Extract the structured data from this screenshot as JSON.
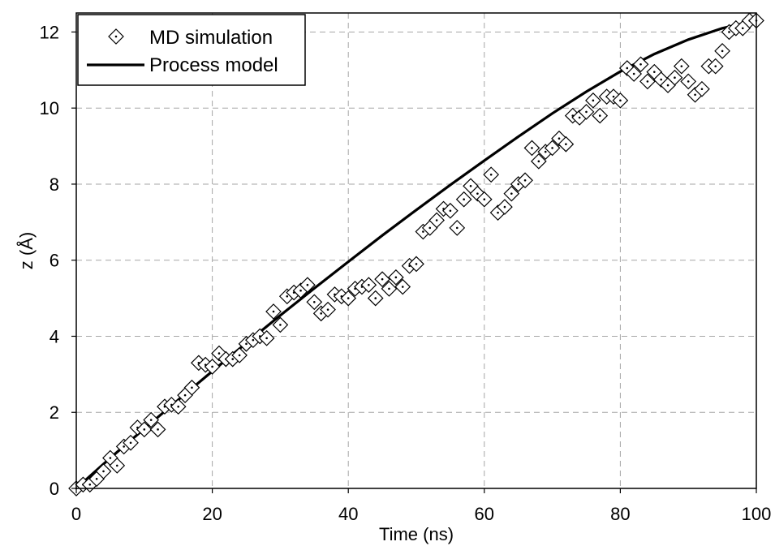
{
  "chart_data": {
    "type": "scatter",
    "xlabel": "Time (ns)",
    "ylabel": "z (Å)",
    "xlim": [
      0,
      100
    ],
    "ylim": [
      0,
      12.5
    ],
    "x_ticks": [
      "0",
      "20",
      "40",
      "60",
      "80",
      "100"
    ],
    "y_ticks": [
      "0",
      "2",
      "4",
      "6",
      "8",
      "10",
      "12"
    ],
    "grid": true,
    "legend_position": "top-left",
    "series": [
      {
        "name": "MD simulation",
        "type": "scatter",
        "marker": "diamond",
        "x": [
          0,
          1,
          2,
          3,
          4,
          5,
          6,
          7,
          8,
          9,
          10,
          11,
          12,
          13,
          14,
          15,
          16,
          17,
          18,
          19,
          20,
          21,
          22,
          23,
          24,
          25,
          26,
          27,
          28,
          29,
          30,
          31,
          32,
          33,
          34,
          35,
          36,
          37,
          38,
          39,
          40,
          41,
          42,
          43,
          44,
          45,
          46,
          47,
          48,
          49,
          50,
          51,
          52,
          53,
          54,
          55,
          56,
          57,
          58,
          59,
          60,
          61,
          62,
          63,
          64,
          65,
          66,
          67,
          68,
          69,
          70,
          71,
          72,
          73,
          74,
          75,
          76,
          77,
          78,
          79,
          80,
          81,
          82,
          83,
          84,
          85,
          86,
          87,
          88,
          89,
          90,
          91,
          92,
          93,
          94,
          95,
          96,
          97,
          98,
          99,
          100
        ],
        "y": [
          0.0,
          0.1,
          0.1,
          0.25,
          0.45,
          0.8,
          0.6,
          1.1,
          1.2,
          1.6,
          1.55,
          1.8,
          1.55,
          2.15,
          2.2,
          2.15,
          2.45,
          2.65,
          3.3,
          3.25,
          3.2,
          3.55,
          3.4,
          3.4,
          3.5,
          3.8,
          3.9,
          4.0,
          3.95,
          4.65,
          4.3,
          5.05,
          5.15,
          5.2,
          5.35,
          4.9,
          4.6,
          4.7,
          5.1,
          5.05,
          5.0,
          5.25,
          5.3,
          5.35,
          5.0,
          5.5,
          5.25,
          5.55,
          5.3,
          5.85,
          5.9,
          6.75,
          6.85,
          7.05,
          7.35,
          7.3,
          6.85,
          7.6,
          7.95,
          7.75,
          7.6,
          8.25,
          7.25,
          7.4,
          7.75,
          8.0,
          8.1,
          8.95,
          8.6,
          8.85,
          8.95,
          9.2,
          9.05,
          9.8,
          9.75,
          9.9,
          10.2,
          9.8,
          10.3,
          10.3,
          10.2,
          11.05,
          10.9,
          11.15,
          10.7,
          10.95,
          10.75,
          10.6,
          10.8,
          11.1,
          10.7,
          10.35,
          10.5,
          11.1,
          11.1,
          11.5,
          12.0,
          12.1,
          12.1,
          12.3,
          12.3
        ]
      },
      {
        "name": "Process model",
        "type": "line",
        "x": [
          0,
          5,
          10,
          15,
          20,
          25,
          30,
          35,
          40,
          45,
          50,
          55,
          60,
          65,
          70,
          75,
          80,
          85,
          90,
          95,
          100
        ],
        "y": [
          0.0,
          0.8,
          1.57,
          2.33,
          3.08,
          3.82,
          4.55,
          5.26,
          5.96,
          6.65,
          7.32,
          7.98,
          8.62,
          9.25,
          9.86,
          10.43,
          10.96,
          11.42,
          11.8,
          12.1,
          12.3
        ]
      }
    ]
  }
}
